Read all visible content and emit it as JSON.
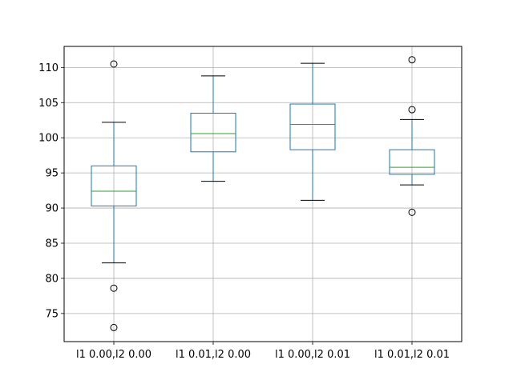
{
  "chart_data": {
    "type": "box",
    "categories": [
      "l1 0.00,l2 0.00",
      "l1 0.01,l2 0.00",
      "l1 0.00,l2 0.01",
      "l1 0.01,l2 0.01"
    ],
    "boxes": [
      {
        "whisker_low": 82.2,
        "q1": 90.3,
        "median": 92.4,
        "q3": 96.0,
        "whisker_high": 102.2,
        "outliers": [
          110.5,
          78.6,
          73.0
        ]
      },
      {
        "whisker_low": 93.8,
        "q1": 98.0,
        "median": 100.6,
        "q3": 103.5,
        "whisker_high": 108.8,
        "outliers": []
      },
      {
        "whisker_low": 91.1,
        "q1": 98.3,
        "median": 101.9,
        "q3": 104.8,
        "whisker_high": 110.6,
        "outliers": []
      },
      {
        "whisker_low": 93.3,
        "q1": 94.8,
        "median": 95.8,
        "q3": 98.3,
        "whisker_high": 102.6,
        "outliers": [
          111.1,
          104.0,
          89.4
        ]
      }
    ],
    "yticks": [
      75,
      80,
      85,
      90,
      95,
      100,
      105,
      110
    ],
    "ylim": [
      71.0,
      113.0
    ],
    "grid": true,
    "xlabel": "",
    "ylabel": "",
    "title": "",
    "colors": {
      "box": "#1f77b4",
      "median": "#2ca02c",
      "whisker": "#1f77b4",
      "cap": "#000000",
      "grid": "#b0b0b0",
      "flier": "#000000"
    }
  }
}
